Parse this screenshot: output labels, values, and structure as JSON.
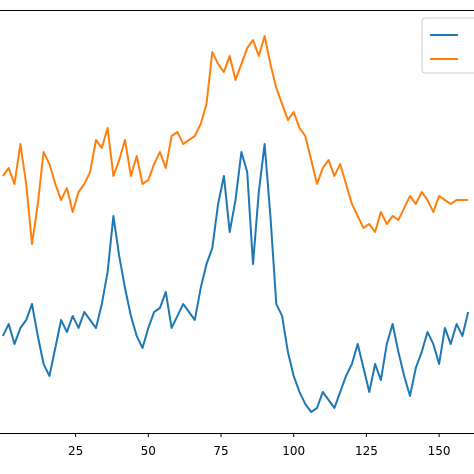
{
  "chart_data": {
    "type": "line",
    "title": "",
    "xlabel": "",
    "ylabel": "",
    "xlim": [
      -1,
      162
    ],
    "ylim": [
      0,
      1
    ],
    "x_ticks": [
      25,
      50,
      75,
      100,
      125,
      150
    ],
    "x_tick_labels": [
      "25",
      "50",
      "75",
      "100",
      "125",
      "150"
    ],
    "grid": false,
    "legend": "top-right",
    "series": [
      {
        "color": "#1f77b4",
        "x": [
          0,
          2,
          4,
          6,
          8,
          10,
          12,
          14,
          16,
          18,
          20,
          22,
          24,
          26,
          28,
          30,
          32,
          34,
          36,
          38,
          40,
          42,
          44,
          46,
          48,
          50,
          52,
          54,
          56,
          58,
          60,
          62,
          64,
          66,
          68,
          70,
          72,
          74,
          76,
          78,
          80,
          82,
          84,
          86,
          88,
          90,
          92,
          94,
          96,
          98,
          100,
          102,
          104,
          106,
          108,
          110,
          112,
          114,
          116,
          118,
          120,
          122,
          124,
          126,
          128,
          130,
          132,
          134,
          136,
          138,
          140,
          142,
          144,
          146,
          148,
          150,
          152,
          154,
          156,
          158,
          160
        ],
        "values": [
          0.22,
          0.25,
          0.2,
          0.24,
          0.26,
          0.3,
          0.22,
          0.15,
          0.12,
          0.19,
          0.26,
          0.23,
          0.27,
          0.24,
          0.28,
          0.26,
          0.24,
          0.3,
          0.38,
          0.52,
          0.42,
          0.34,
          0.27,
          0.22,
          0.19,
          0.24,
          0.28,
          0.29,
          0.33,
          0.24,
          0.27,
          0.3,
          0.28,
          0.26,
          0.34,
          0.4,
          0.44,
          0.55,
          0.62,
          0.48,
          0.56,
          0.68,
          0.63,
          0.4,
          0.58,
          0.7,
          0.52,
          0.3,
          0.27,
          0.18,
          0.12,
          0.08,
          0.05,
          0.03,
          0.04,
          0.08,
          0.06,
          0.04,
          0.08,
          0.12,
          0.15,
          0.2,
          0.14,
          0.08,
          0.15,
          0.11,
          0.2,
          0.25,
          0.18,
          0.12,
          0.07,
          0.14,
          0.18,
          0.23,
          0.2,
          0.15,
          0.24,
          0.2,
          0.25,
          0.22,
          0.28
        ]
      },
      {
        "color": "#ff7f0e",
        "x": [
          0,
          2,
          4,
          6,
          8,
          10,
          12,
          14,
          16,
          18,
          20,
          22,
          24,
          26,
          28,
          30,
          32,
          34,
          36,
          38,
          40,
          42,
          44,
          46,
          48,
          50,
          52,
          54,
          56,
          58,
          60,
          62,
          64,
          66,
          68,
          70,
          72,
          74,
          76,
          78,
          80,
          82,
          84,
          86,
          88,
          90,
          92,
          94,
          96,
          98,
          100,
          102,
          104,
          106,
          108,
          110,
          112,
          114,
          116,
          118,
          120,
          122,
          124,
          126,
          128,
          130,
          132,
          134,
          136,
          138,
          140,
          142,
          144,
          146,
          148,
          150,
          152,
          154,
          156,
          158,
          160
        ],
        "values": [
          0.62,
          0.64,
          0.6,
          0.7,
          0.6,
          0.45,
          0.55,
          0.68,
          0.65,
          0.6,
          0.56,
          0.59,
          0.53,
          0.58,
          0.6,
          0.63,
          0.71,
          0.69,
          0.74,
          0.62,
          0.66,
          0.71,
          0.62,
          0.67,
          0.6,
          0.61,
          0.65,
          0.68,
          0.64,
          0.72,
          0.73,
          0.7,
          0.71,
          0.72,
          0.75,
          0.8,
          0.93,
          0.9,
          0.88,
          0.92,
          0.86,
          0.9,
          0.94,
          0.96,
          0.92,
          0.97,
          0.9,
          0.84,
          0.8,
          0.76,
          0.78,
          0.74,
          0.72,
          0.66,
          0.6,
          0.64,
          0.66,
          0.62,
          0.65,
          0.6,
          0.55,
          0.52,
          0.49,
          0.5,
          0.48,
          0.53,
          0.5,
          0.52,
          0.51,
          0.54,
          0.57,
          0.55,
          0.58,
          0.56,
          0.53,
          0.57,
          0.56,
          0.55,
          0.56,
          0.56,
          0.56
        ]
      }
    ]
  }
}
